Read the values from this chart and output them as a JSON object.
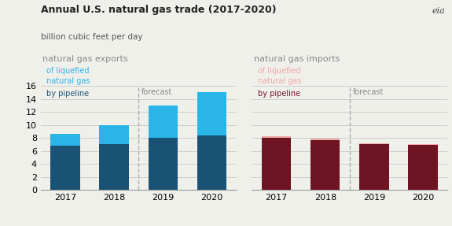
{
  "title": "Annual U.S. natural gas trade (2017-2020)",
  "subtitle": "billion cubic feet per day",
  "years": [
    "2017",
    "2018",
    "2019",
    "2020"
  ],
  "exports": {
    "pipeline": [
      6.8,
      7.0,
      8.0,
      8.4
    ],
    "lng": [
      1.8,
      3.0,
      5.0,
      6.6
    ]
  },
  "imports": {
    "pipeline": [
      8.0,
      7.6,
      7.0,
      6.9
    ],
    "lng": [
      0.3,
      0.3,
      0.2,
      0.1
    ]
  },
  "forecast_after_idx": 1,
  "ylim": [
    0,
    16
  ],
  "yticks": [
    0,
    2,
    4,
    6,
    8,
    10,
    12,
    14,
    16
  ],
  "export_pipeline_color": "#1a5276",
  "export_lng_color": "#29b5e8",
  "import_pipeline_color": "#6e1423",
  "import_lng_color": "#f1a7a7",
  "background_color": "#f0f0eb",
  "grid_color": "#cccccc",
  "forecast_line_color": "#aaaaaa",
  "label_color": "#888888",
  "export_label": "natural gas exports",
  "import_label": "natural gas imports",
  "export_lng_legend": "of liquefied\nnatural gas",
  "export_pipe_legend": "by pipeline",
  "import_lng_legend": "of liquefied\nnatural gas",
  "import_pipe_legend": "by pipeline",
  "forecast_text": "forecast"
}
